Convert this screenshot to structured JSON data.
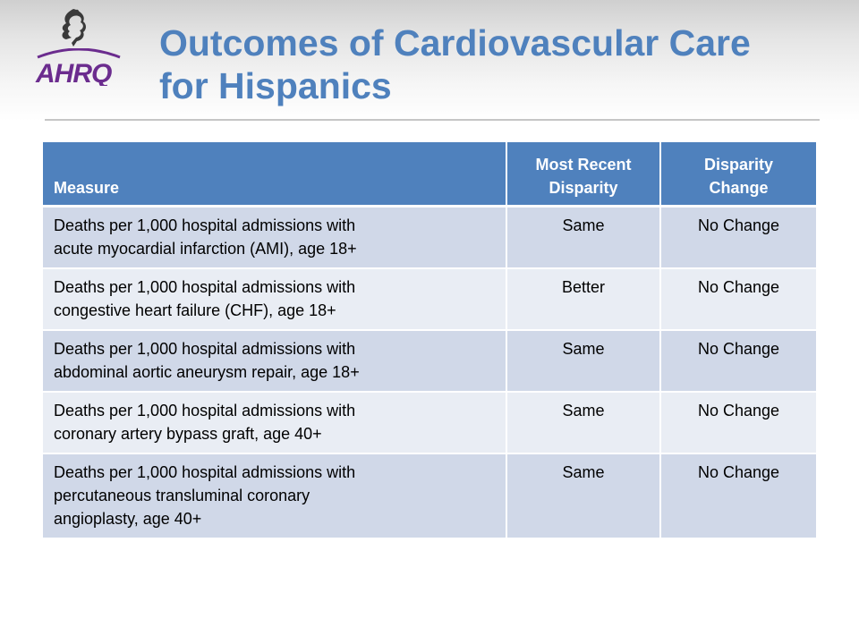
{
  "header": {
    "title_line1": "Outcomes of Cardiovascular Care",
    "title_line2": "for Hispanics"
  },
  "logo": {
    "hhs_icon": "hhs-eagle-icon",
    "ahrq_icon": "ahrq-logo",
    "ahrq_text": "AHRQ",
    "hhs_color": "#3a3a3a",
    "ahrq_color": "#6b2c8e"
  },
  "table": {
    "headers": {
      "measure": "Measure",
      "recent_line1": "Most Recent",
      "recent_line2": "Disparity",
      "change_line1": "Disparity",
      "change_line2": "Change"
    },
    "rows": [
      {
        "measure_line1": "Deaths per 1,000 hospital admissions with",
        "measure_line2": "acute myocardial infarction (AMI), age 18+",
        "measure_line3": "",
        "recent": "Same",
        "change": "No Change"
      },
      {
        "measure_line1": "Deaths per 1,000 hospital admissions with",
        "measure_line2": "congestive heart failure (CHF), age 18+",
        "measure_line3": "",
        "recent": "Better",
        "change": "No Change"
      },
      {
        "measure_line1": "Deaths per 1,000 hospital admissions with",
        "measure_line2": "abdominal aortic aneurysm repair, age 18+",
        "measure_line3": "",
        "recent": "Same",
        "change": "No Change"
      },
      {
        "measure_line1": "Deaths per 1,000 hospital admissions with",
        "measure_line2": "coronary artery bypass graft, age 40+",
        "measure_line3": "",
        "recent": "Same",
        "change": "No Change"
      },
      {
        "measure_line1": "Deaths per 1,000 hospital admissions with",
        "measure_line2": "percutaneous transluminal coronary",
        "measure_line3": "angioplasty, age 40+",
        "recent": "Same",
        "change": "No Change"
      }
    ]
  },
  "colors": {
    "title": "#4f81bd",
    "header_bg": "#4f81bd",
    "row_odd_bg": "#d0d8e8",
    "row_even_bg": "#e9edf4"
  }
}
